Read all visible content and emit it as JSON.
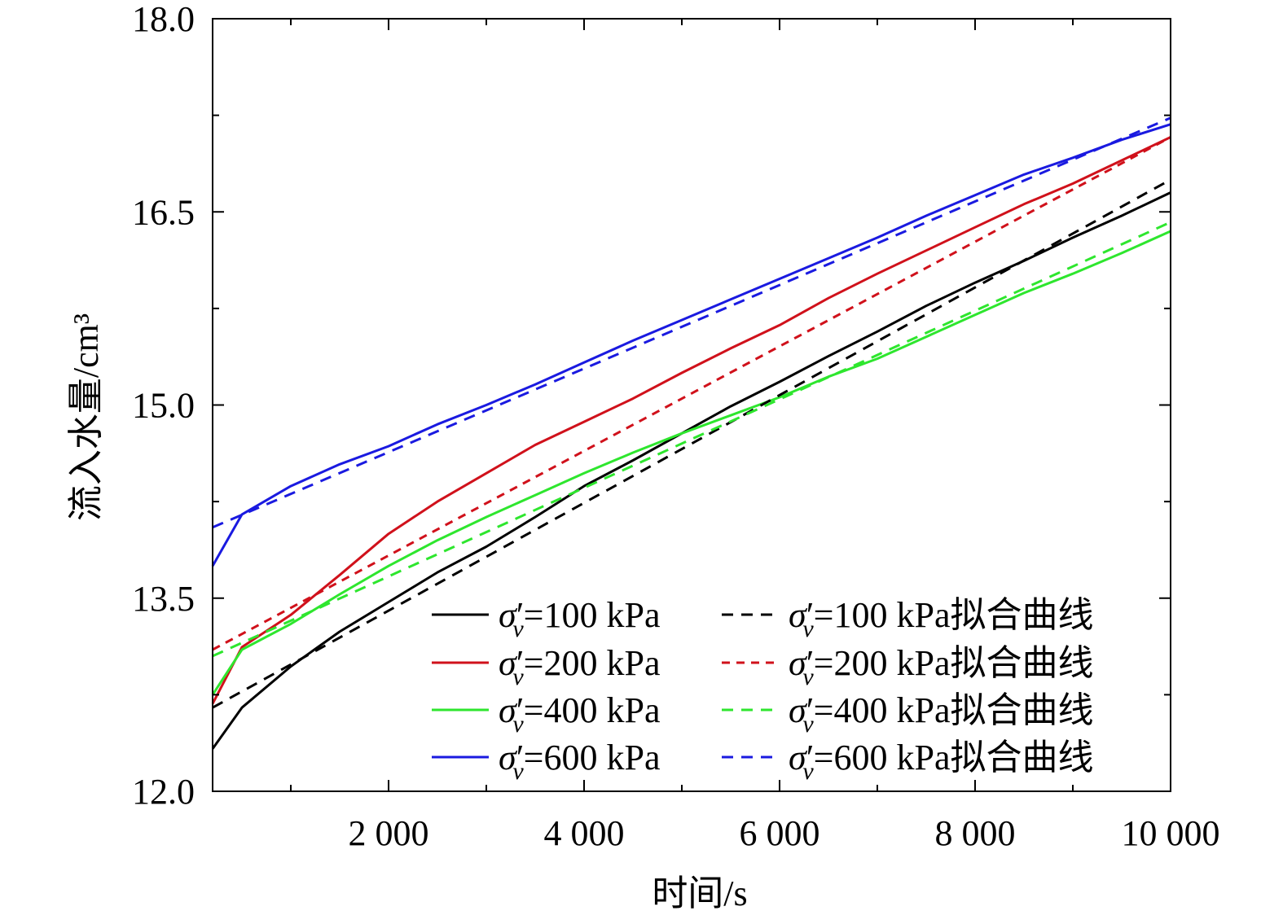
{
  "chart_data": {
    "type": "line",
    "xlabel": "时间/s",
    "ylabel": "流入水量/cm³",
    "xlim": [
      200,
      10000
    ],
    "ylim": [
      12.0,
      18.0
    ],
    "x_ticks": [
      {
        "value": 2000,
        "label": "2 000"
      },
      {
        "value": 4000,
        "label": "4 000"
      },
      {
        "value": 6000,
        "label": "6 000"
      },
      {
        "value": 8000,
        "label": "8 000"
      },
      {
        "value": 10000,
        "label": "10 000"
      }
    ],
    "x_minor_ticks": [
      1000,
      3000,
      5000,
      7000,
      9000
    ],
    "y_ticks": [
      {
        "value": 12.0,
        "label": "12.0"
      },
      {
        "value": 13.5,
        "label": "13.5"
      },
      {
        "value": 15.0,
        "label": "15.0"
      },
      {
        "value": 16.5,
        "label": "16.5"
      },
      {
        "value": 18.0,
        "label": "18.0"
      }
    ],
    "y_minor_ticks": [
      12.75,
      14.25,
      15.75,
      17.25
    ],
    "grid": false,
    "legend_position": "bottom-right",
    "series": [
      {
        "name": "σv′=100 kPa",
        "legend_sigma": "σ",
        "legend_sub": "v",
        "legend_rest": "=100 kPa",
        "color": "#000000",
        "dash": "none",
        "x": [
          200,
          500,
          1000,
          1500,
          2000,
          2500,
          3000,
          3500,
          4000,
          4500,
          5000,
          5500,
          6000,
          6500,
          7000,
          7500,
          8000,
          8500,
          9000,
          9500,
          10000
        ],
        "y": [
          12.33,
          12.65,
          12.97,
          13.24,
          13.47,
          13.7,
          13.9,
          14.13,
          14.37,
          14.57,
          14.78,
          14.99,
          15.18,
          15.38,
          15.57,
          15.77,
          15.95,
          16.12,
          16.3,
          16.47,
          16.65
        ]
      },
      {
        "name": "σv′=200 kPa",
        "legend_sigma": "σ",
        "legend_sub": "v",
        "legend_rest": "=200 kPa",
        "color": "#d0111b",
        "dash": "none",
        "x": [
          200,
          500,
          1000,
          1500,
          2000,
          2500,
          3000,
          3500,
          4000,
          4500,
          5000,
          5500,
          6000,
          6500,
          7000,
          7500,
          8000,
          8500,
          9000,
          9500,
          10000
        ],
        "y": [
          12.68,
          13.12,
          13.37,
          13.68,
          14.0,
          14.25,
          14.47,
          14.69,
          14.87,
          15.05,
          15.25,
          15.44,
          15.62,
          15.83,
          16.02,
          16.2,
          16.38,
          16.56,
          16.72,
          16.9,
          17.08
        ]
      },
      {
        "name": "σv′=400 kPa",
        "legend_sigma": "σ",
        "legend_sub": "v",
        "legend_rest": "=400 kPa",
        "color": "#2ee62e",
        "dash": "none",
        "x": [
          200,
          500,
          1000,
          1500,
          2000,
          2500,
          3000,
          3500,
          4000,
          4500,
          5000,
          5500,
          6000,
          6500,
          7000,
          7500,
          8000,
          8500,
          9000,
          9500,
          10000
        ],
        "y": [
          12.75,
          13.1,
          13.3,
          13.53,
          13.75,
          13.95,
          14.13,
          14.3,
          14.47,
          14.63,
          14.78,
          14.92,
          15.06,
          15.22,
          15.36,
          15.53,
          15.7,
          15.87,
          16.02,
          16.18,
          16.35
        ]
      },
      {
        "name": "σv′=600 kPa",
        "legend_sigma": "σ",
        "legend_sub": "v",
        "legend_rest": "=600 kPa",
        "color": "#1a1ae0",
        "dash": "none",
        "x": [
          200,
          500,
          1000,
          1500,
          2000,
          2500,
          3000,
          3500,
          4000,
          4500,
          5000,
          5500,
          6000,
          6500,
          7000,
          7500,
          8000,
          8500,
          9000,
          9500,
          10000
        ],
        "y": [
          13.75,
          14.15,
          14.37,
          14.54,
          14.68,
          14.85,
          15.0,
          15.16,
          15.33,
          15.5,
          15.66,
          15.82,
          15.98,
          16.14,
          16.3,
          16.47,
          16.63,
          16.79,
          16.92,
          17.06,
          17.18
        ]
      },
      {
        "name": "σv′=100 kPa拟合曲线",
        "legend_sigma": "σ",
        "legend_sub": "v",
        "legend_rest": "=100 kPa拟合曲线",
        "color": "#000000",
        "dash": "14,10",
        "x": [
          200,
          10000
        ],
        "y": [
          12.65,
          16.75
        ]
      },
      {
        "name": "σv′=200 kPa拟合曲线",
        "legend_sigma": "σ",
        "legend_sub": "v",
        "legend_rest": "=200 kPa拟合曲线",
        "color": "#d0111b",
        "dash": "10,8",
        "x": [
          200,
          10000
        ],
        "y": [
          13.1,
          17.08
        ]
      },
      {
        "name": "σv′=400 kPa拟合曲线",
        "legend_sigma": "σ",
        "legend_sub": "v",
        "legend_rest": "=400 kPa拟合曲线",
        "color": "#2ee62e",
        "dash": "14,10",
        "x": [
          200,
          10000
        ],
        "y": [
          13.05,
          16.42
        ]
      },
      {
        "name": "σv′=600 kPa拟合曲线",
        "legend_sigma": "σ",
        "legend_sub": "v",
        "legend_rest": "=600 kPa拟合曲线",
        "color": "#1a1ae0",
        "dash": "14,10",
        "x": [
          200,
          10000
        ],
        "y": [
          14.05,
          17.23
        ]
      }
    ]
  }
}
